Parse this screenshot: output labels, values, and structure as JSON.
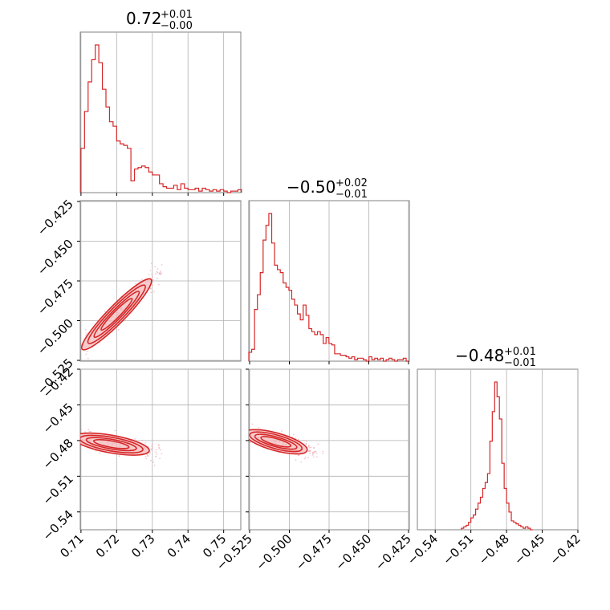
{
  "colors": {
    "series": "#d62728",
    "contour_fill": "#f4b6b8",
    "grid": "#b0b0b0",
    "frame": "#808080",
    "scatter": "#e8a7b2"
  },
  "chart_data": {
    "type": "corner",
    "parameters": [
      {
        "title": {
          "main": "0.72",
          "upper": "+0.01",
          "lower": "−0.00"
        },
        "range": [
          0.7098,
          0.7548
        ],
        "ticks": [
          "0.71",
          "0.72",
          "0.73",
          "0.74",
          "0.75"
        ],
        "tick_values": [
          0.71,
          0.72,
          0.73,
          0.74,
          0.75
        ],
        "histogram": [
          {
            "x": 0.71,
            "y": 0.3
          },
          {
            "x": 0.711,
            "y": 0.55
          },
          {
            "x": 0.712,
            "y": 0.75
          },
          {
            "x": 0.713,
            "y": 0.9
          },
          {
            "x": 0.714,
            "y": 1.0
          },
          {
            "x": 0.715,
            "y": 0.88
          },
          {
            "x": 0.716,
            "y": 0.7
          },
          {
            "x": 0.717,
            "y": 0.58
          },
          {
            "x": 0.718,
            "y": 0.48
          },
          {
            "x": 0.719,
            "y": 0.45
          },
          {
            "x": 0.72,
            "y": 0.35
          },
          {
            "x": 0.721,
            "y": 0.33
          },
          {
            "x": 0.722,
            "y": 0.32
          },
          {
            "x": 0.723,
            "y": 0.3
          },
          {
            "x": 0.724,
            "y": 0.08
          },
          {
            "x": 0.725,
            "y": 0.16
          },
          {
            "x": 0.726,
            "y": 0.17
          },
          {
            "x": 0.727,
            "y": 0.18
          },
          {
            "x": 0.728,
            "y": 0.17
          },
          {
            "x": 0.729,
            "y": 0.14
          },
          {
            "x": 0.73,
            "y": 0.12
          },
          {
            "x": 0.731,
            "y": 0.12
          },
          {
            "x": 0.732,
            "y": 0.06
          },
          {
            "x": 0.733,
            "y": 0.04
          },
          {
            "x": 0.734,
            "y": 0.03
          },
          {
            "x": 0.735,
            "y": 0.03
          },
          {
            "x": 0.736,
            "y": 0.05
          },
          {
            "x": 0.737,
            "y": 0.02
          },
          {
            "x": 0.738,
            "y": 0.06
          },
          {
            "x": 0.739,
            "y": 0.03
          },
          {
            "x": 0.74,
            "y": 0.02
          },
          {
            "x": 0.741,
            "y": 0.02
          },
          {
            "x": 0.742,
            "y": 0.03
          },
          {
            "x": 0.743,
            "y": 0.01
          },
          {
            "x": 0.744,
            "y": 0.03
          },
          {
            "x": 0.745,
            "y": 0.02
          },
          {
            "x": 0.746,
            "y": 0.01
          },
          {
            "x": 0.747,
            "y": 0.02
          },
          {
            "x": 0.748,
            "y": 0.01
          },
          {
            "x": 0.749,
            "y": 0.02
          },
          {
            "x": 0.75,
            "y": 0.01
          },
          {
            "x": 0.751,
            "y": 0.0
          },
          {
            "x": 0.752,
            "y": 0.01
          },
          {
            "x": 0.753,
            "y": 0.01
          },
          {
            "x": 0.754,
            "y": 0.02
          }
        ]
      },
      {
        "title": {
          "main": "−0.50",
          "upper": "+0.02",
          "lower": "−0.01"
        },
        "range": [
          -0.5255,
          -0.4245
        ],
        "ticks": [
          "−0.525",
          "−0.500",
          "−0.475",
          "−0.450",
          "−0.425"
        ],
        "tick_values": [
          -0.525,
          -0.5,
          -0.475,
          -0.45,
          -0.425
        ],
        "histogram": [
          {
            "x": -0.5255,
            "y": 0.06
          },
          {
            "x": -0.5237,
            "y": 0.08
          },
          {
            "x": -0.5219,
            "y": 0.35
          },
          {
            "x": -0.5201,
            "y": 0.45
          },
          {
            "x": -0.5183,
            "y": 0.6
          },
          {
            "x": -0.5165,
            "y": 0.82
          },
          {
            "x": -0.5147,
            "y": 0.92
          },
          {
            "x": -0.5129,
            "y": 1.0
          },
          {
            "x": -0.5111,
            "y": 0.8
          },
          {
            "x": -0.5093,
            "y": 0.65
          },
          {
            "x": -0.5075,
            "y": 0.62
          },
          {
            "x": -0.5057,
            "y": 0.6
          },
          {
            "x": -0.5039,
            "y": 0.53
          },
          {
            "x": -0.5021,
            "y": 0.5
          },
          {
            "x": -0.5003,
            "y": 0.48
          },
          {
            "x": -0.4985,
            "y": 0.42
          },
          {
            "x": -0.4967,
            "y": 0.38
          },
          {
            "x": -0.4949,
            "y": 0.32
          },
          {
            "x": -0.4931,
            "y": 0.28
          },
          {
            "x": -0.4913,
            "y": 0.38
          },
          {
            "x": -0.4895,
            "y": 0.31
          },
          {
            "x": -0.4877,
            "y": 0.22
          },
          {
            "x": -0.4859,
            "y": 0.2
          },
          {
            "x": -0.4841,
            "y": 0.18
          },
          {
            "x": -0.4823,
            "y": 0.2
          },
          {
            "x": -0.4805,
            "y": 0.18
          },
          {
            "x": -0.4787,
            "y": 0.12
          },
          {
            "x": -0.4769,
            "y": 0.16
          },
          {
            "x": -0.4751,
            "y": 0.12
          },
          {
            "x": -0.4733,
            "y": 0.11
          },
          {
            "x": -0.4715,
            "y": 0.05
          },
          {
            "x": -0.4697,
            "y": 0.05
          },
          {
            "x": -0.4679,
            "y": 0.04
          },
          {
            "x": -0.4661,
            "y": 0.04
          },
          {
            "x": -0.4643,
            "y": 0.03
          },
          {
            "x": -0.4625,
            "y": 0.02
          },
          {
            "x": -0.4607,
            "y": 0.03
          },
          {
            "x": -0.4589,
            "y": 0.01
          },
          {
            "x": -0.4571,
            "y": 0.02
          },
          {
            "x": -0.4553,
            "y": 0.02
          },
          {
            "x": -0.4535,
            "y": 0.01
          },
          {
            "x": -0.4517,
            "y": 0.0
          },
          {
            "x": -0.4499,
            "y": 0.03
          },
          {
            "x": -0.4481,
            "y": 0.01
          },
          {
            "x": -0.4463,
            "y": 0.02
          },
          {
            "x": -0.4445,
            "y": 0.01
          },
          {
            "x": -0.4427,
            "y": 0.02
          },
          {
            "x": -0.4409,
            "y": 0.0
          },
          {
            "x": -0.4391,
            "y": 0.01
          },
          {
            "x": -0.4373,
            "y": 0.02
          },
          {
            "x": -0.4355,
            "y": 0.01
          },
          {
            "x": -0.4337,
            "y": 0.0
          },
          {
            "x": -0.4319,
            "y": 0.01
          },
          {
            "x": -0.4301,
            "y": 0.01
          },
          {
            "x": -0.4283,
            "y": 0.02
          },
          {
            "x": -0.4265,
            "y": 0.0
          }
        ]
      },
      {
        "title": {
          "main": "−0.48",
          "upper": "+0.01",
          "lower": "−0.01"
        },
        "range": [
          -0.555,
          -0.42
        ],
        "ticks": [
          "−0.54",
          "−0.51",
          "−0.48",
          "−0.45",
          "−0.42"
        ],
        "tick_values": [
          -0.54,
          -0.51,
          -0.48,
          -0.45,
          -0.42
        ],
        "histogram": [
          {
            "x": -0.518,
            "y": 0.01
          },
          {
            "x": -0.516,
            "y": 0.02
          },
          {
            "x": -0.514,
            "y": 0.03
          },
          {
            "x": -0.512,
            "y": 0.05
          },
          {
            "x": -0.51,
            "y": 0.08
          },
          {
            "x": -0.508,
            "y": 0.1
          },
          {
            "x": -0.506,
            "y": 0.14
          },
          {
            "x": -0.504,
            "y": 0.18
          },
          {
            "x": -0.502,
            "y": 0.22
          },
          {
            "x": -0.5,
            "y": 0.28
          },
          {
            "x": -0.498,
            "y": 0.32
          },
          {
            "x": -0.496,
            "y": 0.38
          },
          {
            "x": -0.494,
            "y": 0.6
          },
          {
            "x": -0.492,
            "y": 0.8
          },
          {
            "x": -0.49,
            "y": 1.0
          },
          {
            "x": -0.488,
            "y": 0.9
          },
          {
            "x": -0.486,
            "y": 0.75
          },
          {
            "x": -0.484,
            "y": 0.45
          },
          {
            "x": -0.482,
            "y": 0.28
          },
          {
            "x": -0.48,
            "y": 0.18
          },
          {
            "x": -0.478,
            "y": 0.12
          },
          {
            "x": -0.476,
            "y": 0.06
          },
          {
            "x": -0.474,
            "y": 0.05
          },
          {
            "x": -0.472,
            "y": 0.04
          },
          {
            "x": -0.47,
            "y": 0.03
          },
          {
            "x": -0.468,
            "y": 0.02
          },
          {
            "x": -0.466,
            "y": 0.01
          },
          {
            "x": -0.464,
            "y": 0.02
          },
          {
            "x": -0.462,
            "y": 0.01
          },
          {
            "x": -0.46,
            "y": 0.0
          }
        ]
      }
    ],
    "panels_2d": [
      {
        "x_param": 0,
        "y_param": 1,
        "contour_centers": [
          [
            0.713,
            -0.512
          ],
          [
            0.717,
            -0.503
          ],
          [
            0.722,
            -0.491
          ],
          [
            0.727,
            -0.48
          ]
        ]
      },
      {
        "x_param": 0,
        "y_param": 2,
        "contour_centers": [
          [
            0.711,
            -0.479
          ],
          [
            0.715,
            -0.482
          ],
          [
            0.72,
            -0.485
          ],
          [
            0.726,
            -0.487
          ]
        ]
      },
      {
        "x_param": 1,
        "y_param": 2,
        "contour_centers": [
          [
            -0.522,
            -0.476
          ],
          [
            -0.515,
            -0.479
          ],
          [
            -0.505,
            -0.483
          ],
          [
            -0.495,
            -0.486
          ]
        ]
      }
    ]
  }
}
